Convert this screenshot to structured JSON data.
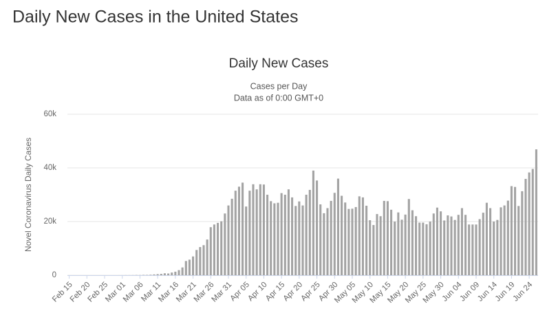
{
  "page_title": "Daily New Cases in the United States",
  "chart_data": {
    "type": "bar",
    "title": "Daily New Cases",
    "subtitle": [
      "Cases per Day",
      "Data as of 0:00 GMT+0"
    ],
    "y_label": "Novel Coronavirus Daily Cases",
    "color": "#a3a3a3",
    "grid": true,
    "ylim": [
      0,
      60000
    ],
    "yticks": [
      0,
      {
        "value": 20000,
        "label": "20k"
      },
      {
        "value": 40000,
        "label": "40k"
      },
      {
        "value": 60000,
        "label": "60k"
      }
    ],
    "categories": [
      "Feb 15",
      null,
      null,
      null,
      null,
      "Feb 20",
      null,
      null,
      null,
      null,
      "Feb 25",
      null,
      null,
      null,
      null,
      "Mar 01",
      null,
      null,
      null,
      null,
      "Mar 06",
      null,
      null,
      null,
      null,
      "Mar 11",
      null,
      null,
      null,
      null,
      "Mar 16",
      null,
      null,
      null,
      null,
      "Mar 21",
      null,
      null,
      null,
      null,
      "Mar 26",
      null,
      null,
      null,
      null,
      "Mar 31",
      null,
      null,
      null,
      null,
      "Apr 05",
      null,
      null,
      null,
      null,
      "Apr 10",
      null,
      null,
      null,
      null,
      "Apr 15",
      null,
      null,
      null,
      null,
      "Apr 20",
      null,
      null,
      null,
      null,
      "Apr 25",
      null,
      null,
      null,
      null,
      "Apr 30",
      null,
      null,
      null,
      null,
      "May 05",
      null,
      null,
      null,
      null,
      "May 10",
      null,
      null,
      null,
      null,
      "May 15",
      null,
      null,
      null,
      null,
      "May 20",
      null,
      null,
      null,
      null,
      "May 25",
      null,
      null,
      null,
      null,
      "May 30",
      null,
      null,
      null,
      null,
      "Jun 04",
      null,
      null,
      null,
      null,
      "Jun 09",
      null,
      null,
      null,
      null,
      "Jun 14",
      null,
      null,
      null,
      null,
      "Jun 19",
      null,
      null,
      null,
      null,
      "Jun 24",
      null,
      null
    ],
    "values": [
      0,
      0,
      0,
      0,
      0,
      0,
      1,
      0,
      0,
      0,
      1,
      0,
      0,
      3,
      7,
      8,
      24,
      20,
      31,
      70,
      60,
      120,
      120,
      180,
      290,
      400,
      500,
      720,
      640,
      1000,
      1300,
      1900,
      2900,
      5300,
      5800,
      7000,
      9400,
      10500,
      11200,
      13300,
      17900,
      18900,
      19500,
      20100,
      23000,
      26000,
      28500,
      31500,
      33000,
      34500,
      25600,
      31500,
      33900,
      32000,
      33900,
      33800,
      30000,
      27600,
      26800,
      27000,
      30600,
      30000,
      32000,
      29000,
      25800,
      27500,
      26000,
      30000,
      31800,
      39000,
      35300,
      26400,
      23100,
      25000,
      27700,
      30700,
      36000,
      29600,
      27100,
      24700,
      24800,
      25400,
      29400,
      29000,
      25900,
      20500,
      18700,
      22800,
      22000,
      27700,
      27600,
      24400,
      20000,
      23400,
      20700,
      22600,
      28400,
      24200,
      22000,
      19600,
      19600,
      19000,
      20000,
      23000,
      25200,
      23800,
      20400,
      22300,
      21900,
      20600,
      22500,
      25000,
      22500,
      18900,
      18900,
      18900,
      20900,
      23300,
      27000,
      25000,
      20000,
      20600,
      25300,
      26000,
      27800,
      33200,
      32900,
      25800,
      31300,
      35900,
      38300,
      39600,
      46900
    ]
  }
}
